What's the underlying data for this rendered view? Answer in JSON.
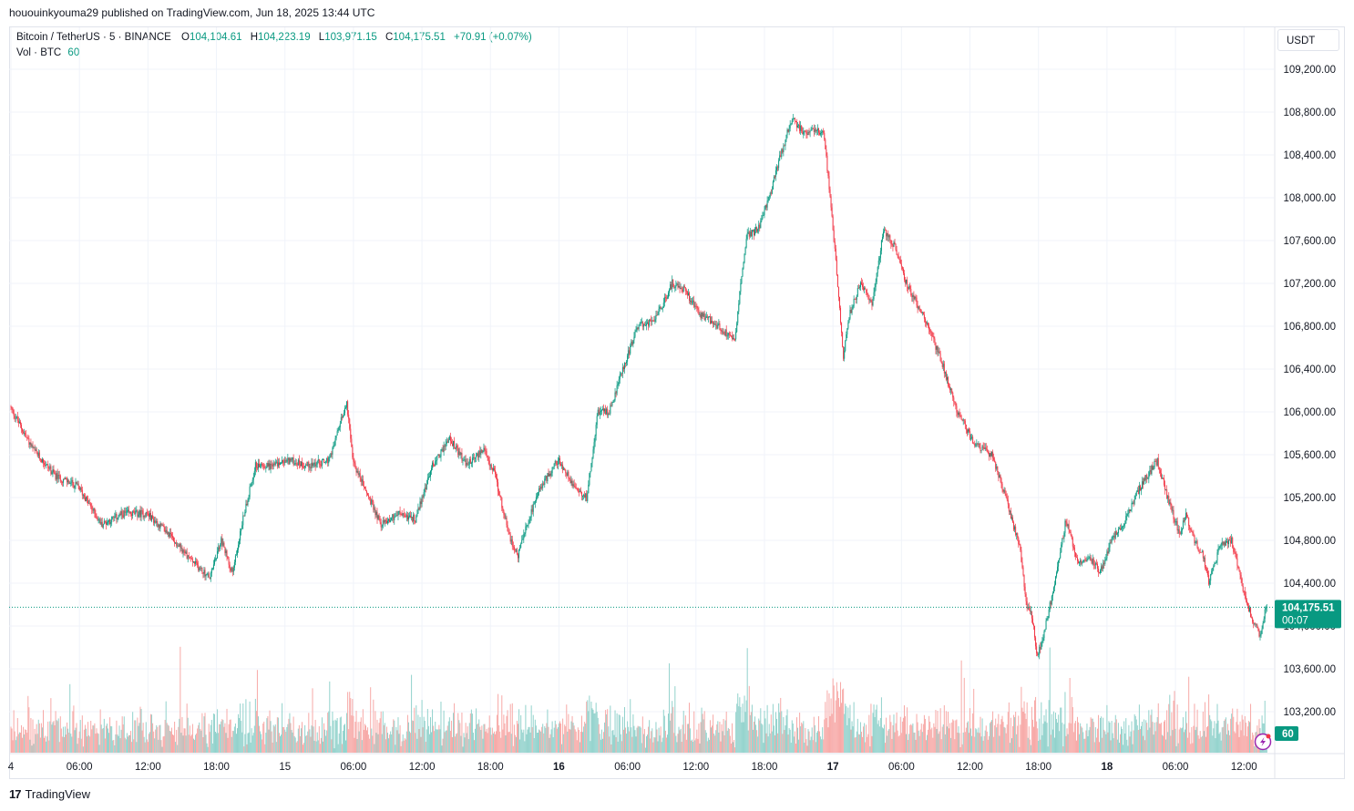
{
  "header": {
    "published_line": "hououinkyouma29 published on TradingView.com, Jun 18, 2025 13:44 UTC"
  },
  "legend": {
    "symbol": "Bitcoin / TetherUS · 5 · BINANCE",
    "open_label": "O",
    "open": "104,104.61",
    "high_label": "H",
    "high": "104,223.19",
    "low_label": "L",
    "low": "103,971.15",
    "close_label": "C",
    "close": "104,175.51",
    "change": "+70.91 (+0.07%)",
    "volume_label": "Vol · BTC",
    "volume": "60"
  },
  "currency_button": "USDT",
  "price_tag": {
    "price": "104,175.51",
    "countdown": "00:07",
    "color": "#089981"
  },
  "volume_tag": {
    "value": "60"
  },
  "colors": {
    "up": "#089981",
    "down": "#f23645",
    "volume_up": "#92d2cc",
    "volume_down": "#f7a9a7"
  },
  "footer": {
    "brand": "TradingView"
  },
  "chart_data": {
    "type": "candlestick",
    "symbol": "BTCUSDT",
    "interval": "5",
    "exchange": "BINANCE",
    "y_axis": {
      "ylim": [
        103000,
        109600
      ],
      "ticks": [
        103200,
        103600,
        104000,
        104400,
        104800,
        105200,
        105600,
        106000,
        106400,
        106800,
        107200,
        107600,
        108000,
        108400,
        108800,
        109200
      ],
      "tick_labels": [
        "103,200.00",
        "103,600.00",
        "104,000.00",
        "104,400.00",
        "104,800.00",
        "105,200.00",
        "105,600.00",
        "106,000.00",
        "106,400.00",
        "106,800.00",
        "107,200.00",
        "107,600.00",
        "108,000.00",
        "108,400.00",
        "108,800.00",
        "109,200.00"
      ]
    },
    "x_axis": {
      "start": "Jun 14 00:00",
      "ticks": [
        {
          "hour": 0,
          "label": "4",
          "bold": false
        },
        {
          "hour": 6,
          "label": "06:00",
          "bold": false
        },
        {
          "hour": 12,
          "label": "12:00",
          "bold": false
        },
        {
          "hour": 18,
          "label": "18:00",
          "bold": false
        },
        {
          "hour": 24,
          "label": "15",
          "bold": false
        },
        {
          "hour": 30,
          "label": "06:00",
          "bold": false
        },
        {
          "hour": 36,
          "label": "12:00",
          "bold": false
        },
        {
          "hour": 42,
          "label": "18:00",
          "bold": false
        },
        {
          "hour": 48,
          "label": "16",
          "bold": true
        },
        {
          "hour": 54,
          "label": "06:00",
          "bold": false
        },
        {
          "hour": 60,
          "label": "12:00",
          "bold": false
        },
        {
          "hour": 66,
          "label": "18:00",
          "bold": false
        },
        {
          "hour": 72,
          "label": "17",
          "bold": true
        },
        {
          "hour": 78,
          "label": "06:00",
          "bold": false
        },
        {
          "hour": 84,
          "label": "12:00",
          "bold": false
        },
        {
          "hour": 90,
          "label": "18:00",
          "bold": false
        },
        {
          "hour": 96,
          "label": "18",
          "bold": true
        },
        {
          "hour": 102,
          "label": "06:00",
          "bold": false
        },
        {
          "hour": 108,
          "label": "12:00",
          "bold": false
        }
      ]
    },
    "last_price": 104175.51,
    "price_path_hours": [
      0,
      1,
      2,
      4,
      6,
      8,
      10,
      12,
      14,
      16,
      17.5,
      18.5,
      19.5,
      20.5,
      21.5,
      23,
      24.5,
      26,
      28,
      29.5,
      30,
      31,
      32.5,
      34,
      35.5,
      37,
      38.5,
      40,
      41.5,
      42.5,
      43.7,
      44.5,
      45.3,
      46.5,
      48,
      49.5,
      50.5,
      51.5,
      52.5,
      53.5,
      55,
      56.5,
      58,
      59,
      60.5,
      61.5,
      62.5,
      63.5,
      64.5,
      65.5,
      66.5,
      67.5,
      68.5,
      69.5,
      70.5,
      71.3,
      72,
      72.5,
      73,
      73.5,
      74.5,
      75.5,
      76.5,
      77.5,
      78.5,
      80,
      81.5,
      83,
      84.5,
      86,
      87.5,
      88.5,
      89,
      89.5,
      90,
      90.7,
      91.5,
      92.5,
      93.5,
      94.5,
      95.5,
      96.5,
      97.5,
      99,
      100.5,
      101.5,
      102.5,
      103,
      103.5,
      104.5,
      105,
      106,
      107,
      108,
      108.7,
      109.5,
      110
    ],
    "price_path_values": [
      106050,
      105850,
      105650,
      105400,
      105300,
      104950,
      105050,
      105050,
      104850,
      104600,
      104450,
      104800,
      104500,
      105050,
      105500,
      105500,
      105550,
      105500,
      105550,
      106100,
      105550,
      105300,
      104950,
      105050,
      105000,
      105500,
      105750,
      105500,
      105650,
      105400,
      104850,
      104650,
      104950,
      105300,
      105550,
      105300,
      105200,
      106000,
      106000,
      106350,
      106800,
      106850,
      107200,
      107150,
      106900,
      106850,
      106750,
      106700,
      107650,
      107700,
      108000,
      108400,
      108750,
      108600,
      108650,
      108600,
      107800,
      107200,
      106500,
      106900,
      107200,
      107000,
      107700,
      107550,
      107200,
      106900,
      106500,
      106000,
      105700,
      105600,
      105100,
      104700,
      104200,
      104100,
      103700,
      104000,
      104400,
      105000,
      104600,
      104650,
      104500,
      104800,
      104950,
      105300,
      105550,
      105150,
      104850,
      105050,
      104850,
      104650,
      104400,
      104750,
      104800,
      104350,
      104100,
      103900,
      104175.51
    ]
  }
}
